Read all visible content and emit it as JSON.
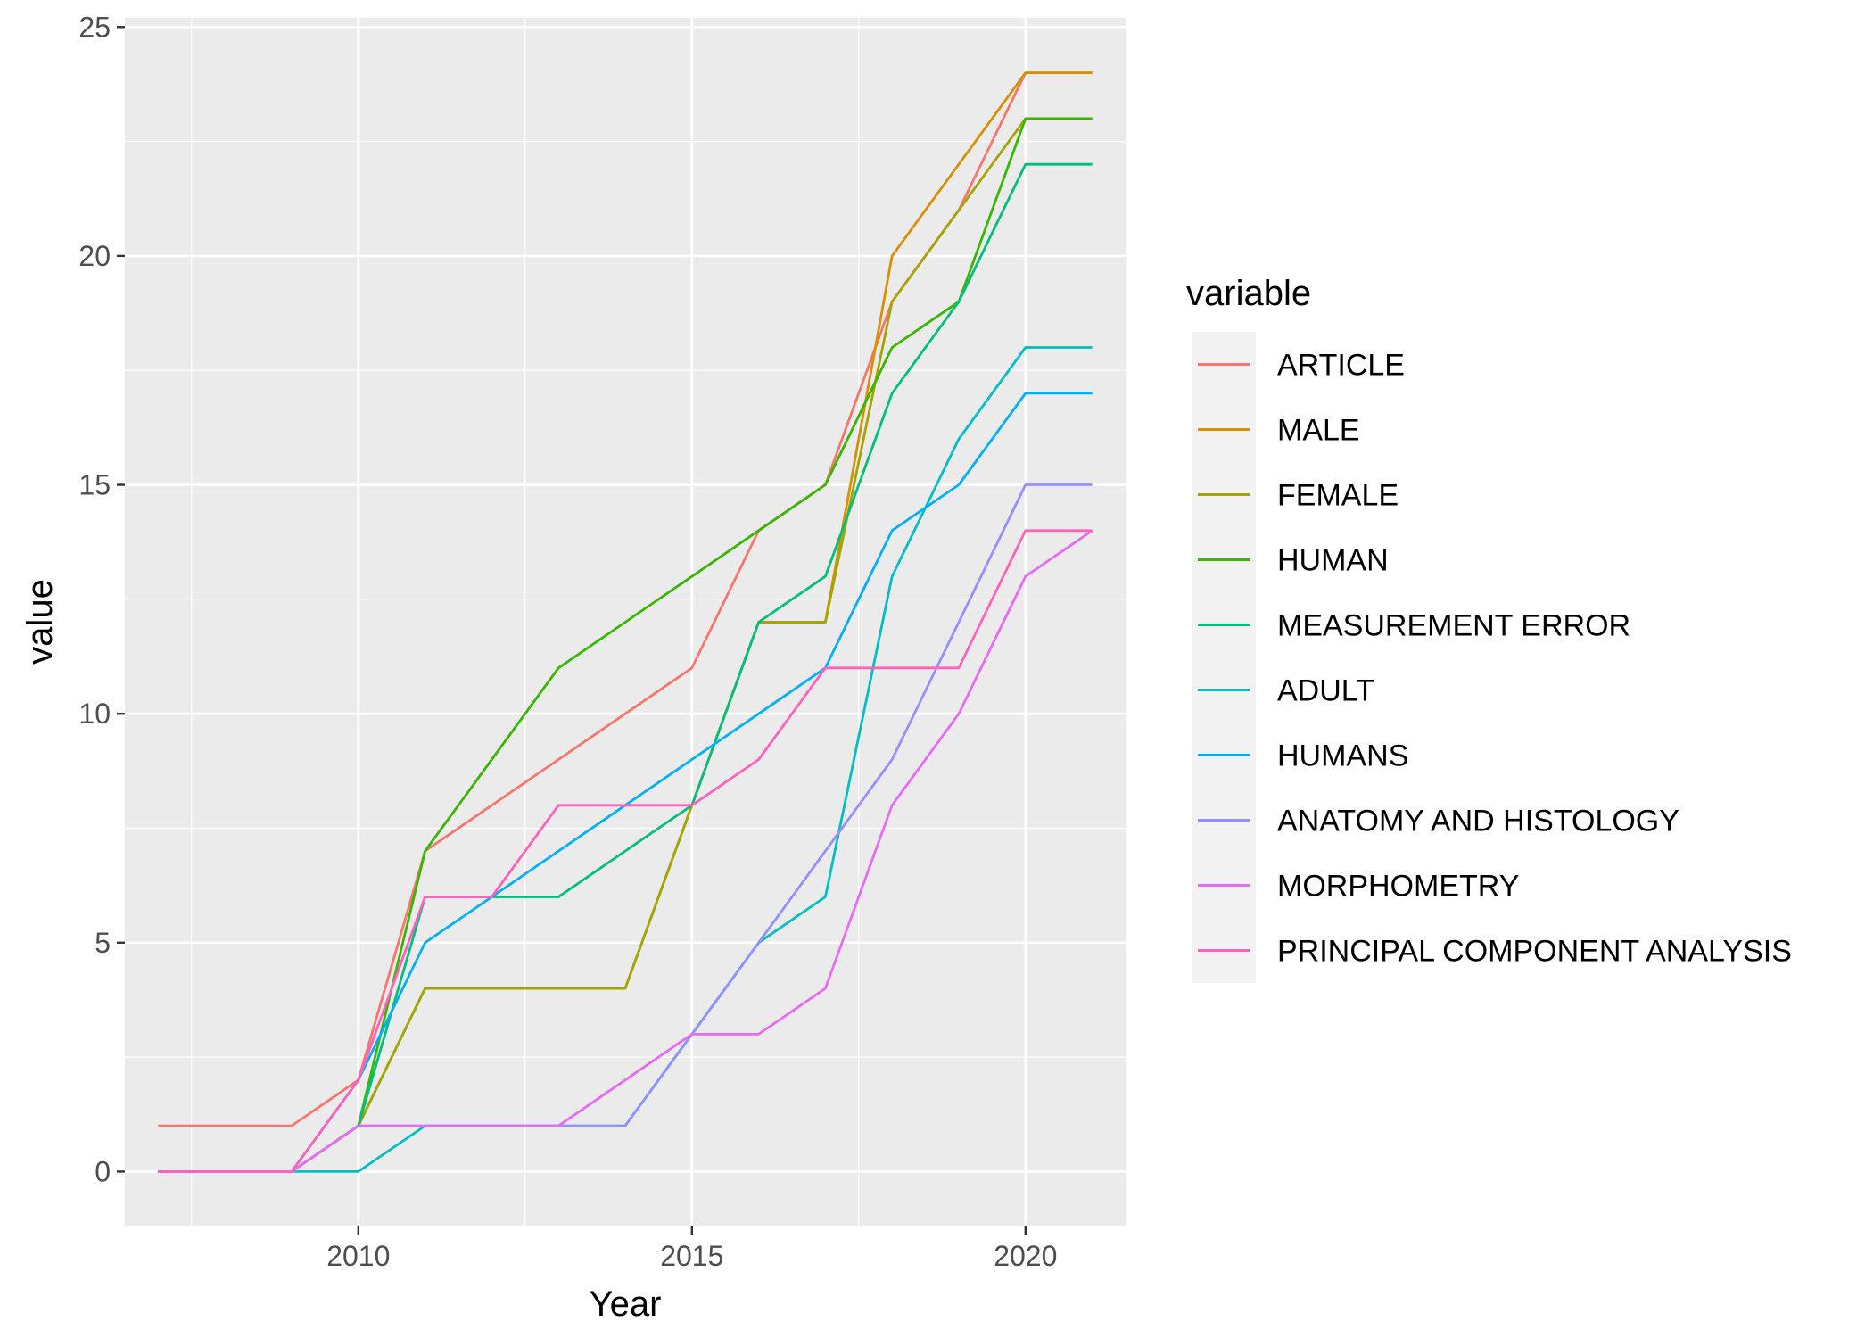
{
  "chart_data": {
    "type": "line",
    "xlabel": "Year",
    "ylabel": "value",
    "xlim": [
      2006.5,
      2021.5
    ],
    "ylim": [
      -1.2,
      25.2
    ],
    "x_ticks": [
      2010,
      2015,
      2020
    ],
    "y_ticks": [
      0,
      5,
      10,
      15,
      20,
      25
    ],
    "x_tick_labels": [
      "2010",
      "2015",
      "2020"
    ],
    "y_tick_labels": [
      "0",
      "5",
      "10",
      "15",
      "20",
      "25"
    ],
    "grid": true,
    "legend": {
      "title": "variable",
      "position": "right"
    },
    "x": [
      2007,
      2008,
      2009,
      2010,
      2011,
      2012,
      2013,
      2014,
      2015,
      2016,
      2017,
      2018,
      2019,
      2020,
      2021
    ],
    "series": [
      {
        "name": "ARTICLE",
        "color": "#F8766D",
        "values": [
          1,
          1,
          1,
          2,
          7,
          8,
          9,
          10,
          11,
          14,
          15,
          19,
          21,
          24,
          24
        ]
      },
      {
        "name": "MALE",
        "color": "#D89000",
        "values": [
          0,
          0,
          0,
          1,
          4,
          4,
          4,
          4,
          8,
          12,
          12,
          20,
          22,
          24,
          24
        ]
      },
      {
        "name": "FEMALE",
        "color": "#A3A500",
        "values": [
          0,
          0,
          0,
          1,
          4,
          4,
          4,
          4,
          8,
          12,
          12,
          19,
          21,
          23,
          23
        ]
      },
      {
        "name": "HUMAN",
        "color": "#39B600",
        "values": [
          0,
          0,
          0,
          1,
          7,
          9,
          11,
          12,
          13,
          14,
          15,
          18,
          19,
          23,
          23
        ]
      },
      {
        "name": "MEASUREMENT ERROR",
        "color": "#00BF7D",
        "values": [
          0,
          0,
          0,
          1,
          6,
          6,
          6,
          7,
          8,
          12,
          13,
          17,
          19,
          22,
          22
        ]
      },
      {
        "name": "ADULT",
        "color": "#00BFC4",
        "values": [
          0,
          0,
          0,
          0,
          1,
          1,
          1,
          1,
          3,
          5,
          6,
          13,
          16,
          18,
          18
        ]
      },
      {
        "name": "HUMANS",
        "color": "#00B0F6",
        "values": [
          0,
          0,
          0,
          2,
          5,
          6,
          7,
          8,
          9,
          10,
          11,
          14,
          15,
          17,
          17
        ]
      },
      {
        "name": "ANATOMY AND HISTOLOGY",
        "color": "#9590FF",
        "values": [
          0,
          0,
          0,
          1,
          1,
          1,
          1,
          1,
          3,
          5,
          7,
          9,
          12,
          15,
          15
        ]
      },
      {
        "name": "MORPHOMETRY",
        "color": "#E76BF3",
        "values": [
          0,
          0,
          0,
          1,
          1,
          1,
          1,
          2,
          3,
          3,
          4,
          8,
          10,
          13,
          14
        ]
      },
      {
        "name": "PRINCIPAL COMPONENT ANALYSIS",
        "color": "#FF62BC",
        "values": [
          0,
          0,
          0,
          2,
          6,
          6,
          8,
          8,
          8,
          9,
          11,
          11,
          11,
          14,
          14
        ]
      }
    ]
  }
}
